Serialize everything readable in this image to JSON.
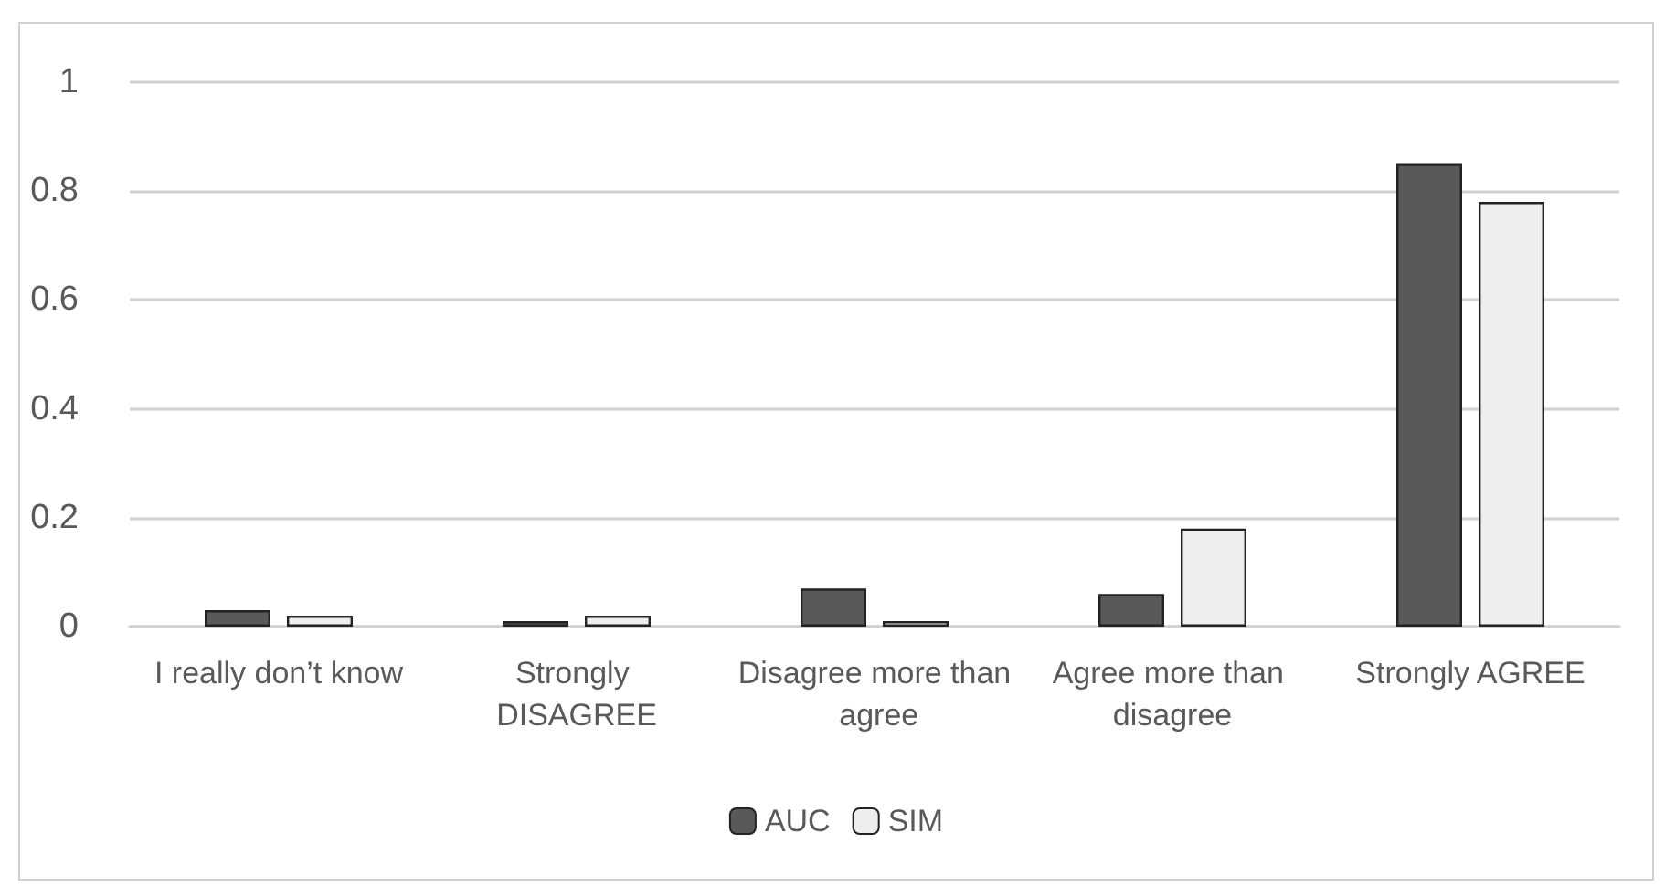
{
  "chart_data": {
    "type": "bar",
    "categories": [
      "I really don’t know",
      "Strongly DISAGREE",
      "Disagree more than agree",
      "Agree more than disagree",
      "Strongly AGREE"
    ],
    "series": [
      {
        "name": "AUC",
        "color": "#595959",
        "values": [
          0.03,
          0.01,
          0.07,
          0.06,
          0.85
        ]
      },
      {
        "name": "SIM",
        "color": "#eeeeee",
        "values": [
          0.02,
          0.02,
          0.01,
          0.18,
          0.78
        ]
      }
    ],
    "ylim": [
      0,
      1
    ],
    "yticks": [
      0,
      0.2,
      0.4,
      0.6,
      0.8,
      1
    ],
    "grid": "y",
    "legend": "bottom"
  }
}
